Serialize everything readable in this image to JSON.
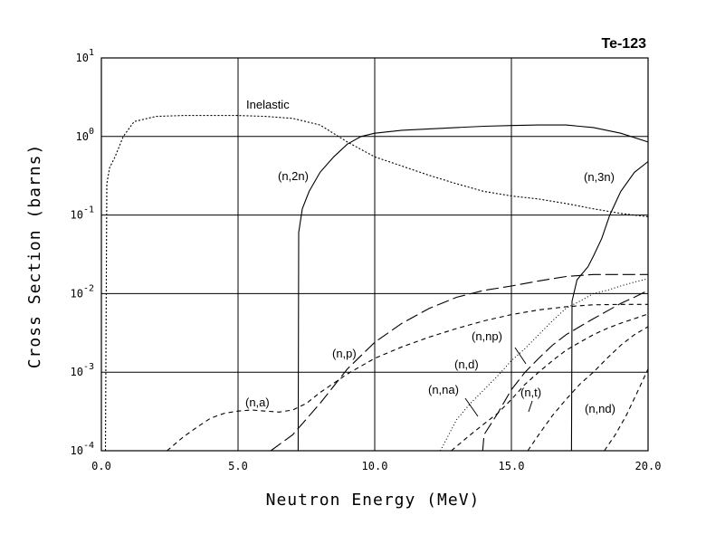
{
  "chart_data": {
    "type": "line",
    "title": "Te-123",
    "xlabel": "Neutron Energy (MeV)",
    "ylabel": "Cross Section (barns)",
    "xlim": [
      0,
      20
    ],
    "ylim": [
      0.0001,
      10
    ],
    "yscale": "log",
    "grid": true,
    "xticks": [
      "0.0",
      "5.0",
      "10.0",
      "15.0",
      "20.0"
    ],
    "yticks": [
      {
        "base": "10",
        "exp": "-4"
      },
      {
        "base": "10",
        "exp": "-3"
      },
      {
        "base": "10",
        "exp": "-2"
      },
      {
        "base": "10",
        "exp": "-1"
      },
      {
        "base": "10",
        "exp": "0"
      },
      {
        "base": "10",
        "exp": "1"
      }
    ],
    "series": [
      {
        "name": "Inelastic",
        "dash": "short",
        "x": [
          0.15,
          0.2,
          0.3,
          0.5,
          0.8,
          1.2,
          2.0,
          3.0,
          4.0,
          5.0,
          6.0,
          7.0,
          8.0,
          9.0,
          10.0,
          11.0,
          12.0,
          13.0,
          14.0,
          15.0,
          16.0,
          17.0,
          18.0,
          19.0,
          20.0
        ],
        "y": [
          0.0001,
          0.25,
          0.4,
          0.55,
          1.0,
          1.55,
          1.8,
          1.85,
          1.85,
          1.85,
          1.8,
          1.7,
          1.4,
          0.85,
          0.55,
          0.42,
          0.32,
          0.25,
          0.2,
          0.175,
          0.16,
          0.14,
          0.12,
          0.105,
          0.095
        ]
      },
      {
        "name": "(n,2n)",
        "dash": "solid",
        "x": [
          7.2,
          7.22,
          7.35,
          7.6,
          8.0,
          8.5,
          9.0,
          9.5,
          10.0,
          11.0,
          12.0,
          13.0,
          14.0,
          15.0,
          16.0,
          17.0,
          18.0,
          19.0,
          20.0
        ],
        "y": [
          0.0001,
          0.06,
          0.12,
          0.2,
          0.35,
          0.55,
          0.8,
          1.0,
          1.1,
          1.2,
          1.25,
          1.3,
          1.35,
          1.38,
          1.4,
          1.4,
          1.3,
          1.1,
          0.85
        ]
      },
      {
        "name": "(n,3n)",
        "dash": "solid",
        "x": [
          17.2,
          17.22,
          17.4,
          17.8,
          18.0,
          18.3,
          18.6,
          19.0,
          19.5,
          20.0
        ],
        "y": [
          0.0001,
          0.008,
          0.015,
          0.022,
          0.03,
          0.05,
          0.1,
          0.2,
          0.35,
          0.48
        ]
      },
      {
        "name": "(n,p)",
        "dash": "long",
        "x": [
          6.2,
          7.0,
          8.0,
          9.0,
          10.0,
          11.0,
          12.0,
          13.0,
          14.0,
          15.0,
          16.0,
          17.0,
          18.0,
          19.0,
          20.0
        ],
        "y": [
          0.0001,
          0.00016,
          0.0004,
          0.0011,
          0.0024,
          0.0042,
          0.0065,
          0.009,
          0.011,
          0.0125,
          0.0145,
          0.0165,
          0.0175,
          0.0175,
          0.0175
        ]
      },
      {
        "name": "(n,a)",
        "dash": "medium",
        "x": [
          2.4,
          3.0,
          3.5,
          4.0,
          4.5,
          5.0,
          5.5,
          6.0,
          6.5,
          7.0,
          7.5,
          8.0,
          9.0,
          10.0,
          11.0,
          12.0,
          13.0,
          14.0,
          15.0,
          16.0,
          17.0,
          18.0,
          19.0,
          20.0
        ],
        "y": [
          0.0001,
          0.00015,
          0.0002,
          0.00026,
          0.0003,
          0.00032,
          0.00033,
          0.00032,
          0.00031,
          0.00033,
          0.0004,
          0.00055,
          0.00095,
          0.0015,
          0.0021,
          0.0028,
          0.0036,
          0.0045,
          0.0054,
          0.0062,
          0.0068,
          0.0072,
          0.0073,
          0.0073
        ]
      },
      {
        "name": "(n,np)",
        "dash": "dotted",
        "x": [
          12.4,
          13.0,
          13.5,
          14.0,
          14.5,
          15.0,
          15.5,
          16.0,
          16.5,
          17.0,
          17.5,
          18.0,
          18.5,
          19.0,
          19.5,
          20.0
        ],
        "y": [
          0.0001,
          0.00025,
          0.0004,
          0.0006,
          0.0009,
          0.0014,
          0.002,
          0.003,
          0.0045,
          0.0065,
          0.008,
          0.01,
          0.011,
          0.0125,
          0.014,
          0.0155
        ]
      },
      {
        "name": "(n,d)",
        "dash": "long",
        "x": [
          13.95,
          14.0,
          14.5,
          15.0,
          15.5,
          16.0,
          16.5,
          17.0,
          17.5,
          18.0,
          18.5,
          19.0,
          19.5,
          20.0
        ],
        "y": [
          0.0001,
          0.00016,
          0.0003,
          0.0006,
          0.001,
          0.0015,
          0.0022,
          0.003,
          0.0038,
          0.0048,
          0.006,
          0.0075,
          0.009,
          0.011
        ]
      },
      {
        "name": "(n,na)",
        "dash": "medium",
        "x": [
          12.8,
          13.5,
          14.0,
          14.5,
          15.0,
          15.5,
          16.0,
          16.5,
          17.0,
          17.5,
          18.0,
          18.5,
          19.0,
          19.5,
          20.0
        ],
        "y": [
          0.0001,
          0.00016,
          0.00022,
          0.0003,
          0.00045,
          0.0007,
          0.001,
          0.0014,
          0.0019,
          0.0024,
          0.003,
          0.0036,
          0.0042,
          0.0048,
          0.0055
        ]
      },
      {
        "name": "(n,t)",
        "dash": "medium",
        "x": [
          15.6,
          16.0,
          16.5,
          17.0,
          17.5,
          18.0,
          18.5,
          19.0,
          19.5,
          20.0
        ],
        "y": [
          0.0001,
          0.00016,
          0.00028,
          0.00045,
          0.0007,
          0.001,
          0.0015,
          0.0022,
          0.003,
          0.0038
        ]
      },
      {
        "name": "(n,nd)",
        "dash": "medium",
        "x": [
          18.4,
          18.8,
          19.2,
          19.6,
          20.0
        ],
        "y": [
          0.0001,
          0.00016,
          0.00028,
          0.00055,
          0.0011
        ]
      }
    ],
    "annotations": [
      {
        "text": "Inelastic"
      },
      {
        "text": "(n,2n)"
      },
      {
        "text": "(n,3n)"
      },
      {
        "text": "(n,p)"
      },
      {
        "text": "(n,a)"
      },
      {
        "text": "(n,np)"
      },
      {
        "text": "(n,d)"
      },
      {
        "text": "(n,na)"
      },
      {
        "text": "(n,t)"
      },
      {
        "text": "(n,nd)"
      }
    ]
  }
}
